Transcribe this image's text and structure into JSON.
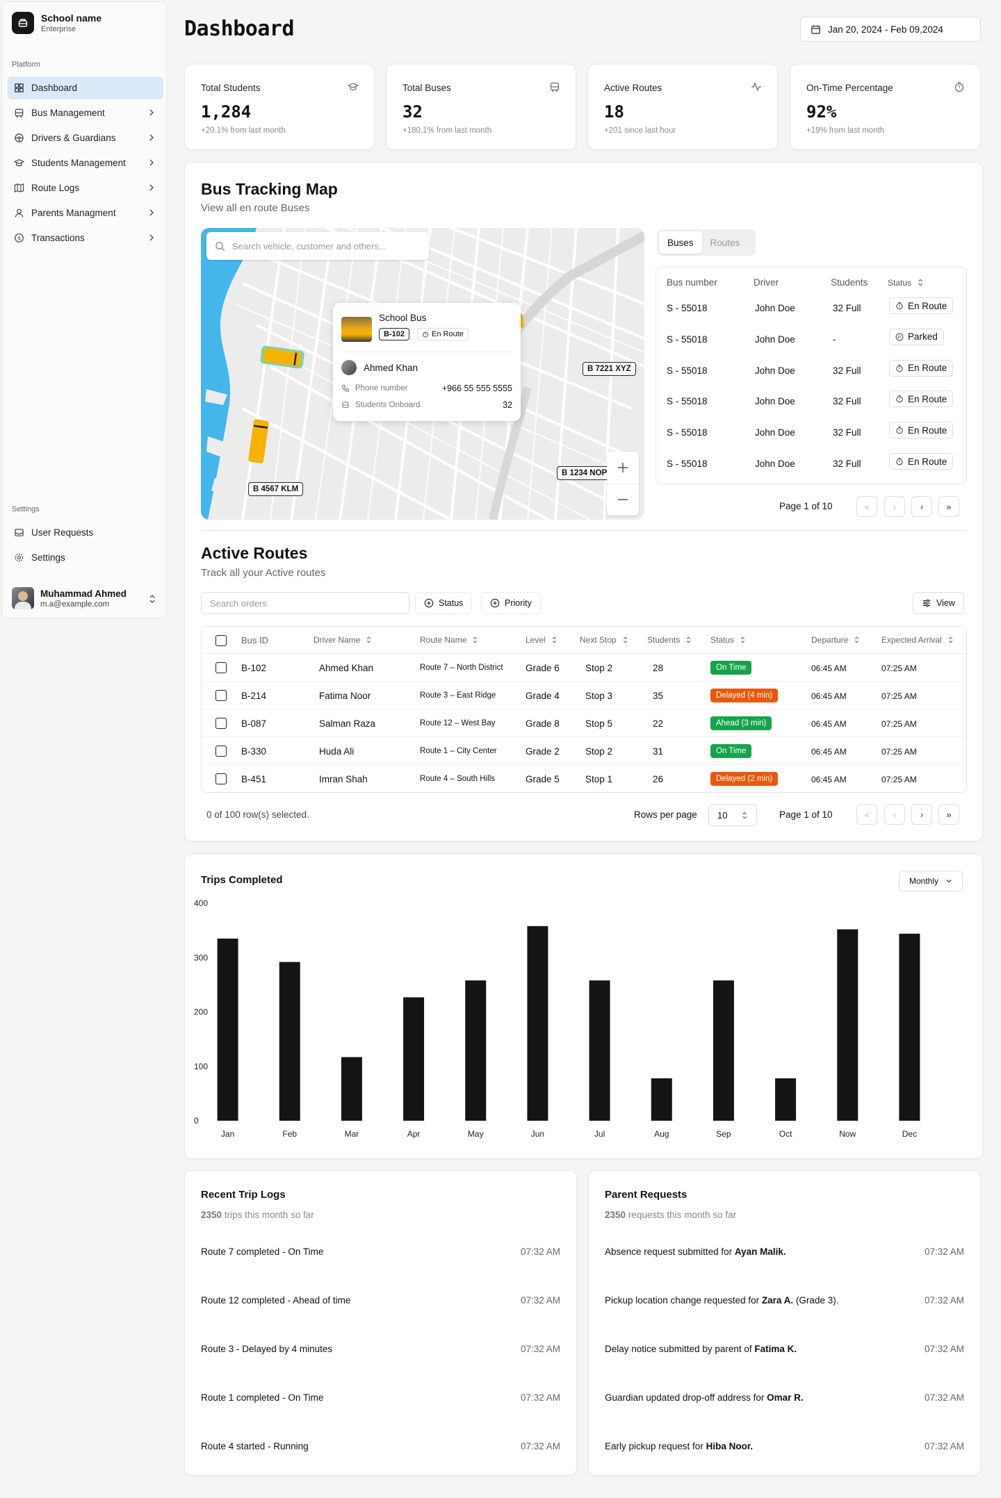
{
  "sidebar": {
    "brand": {
      "name": "School name",
      "plan": "Enterprise"
    },
    "platform_label": "Platform",
    "items": [
      {
        "label": "Dashboard"
      },
      {
        "label": "Bus Management"
      },
      {
        "label": "Drivers & Guardians"
      },
      {
        "label": "Students Management"
      },
      {
        "label": "Route Logs"
      },
      {
        "label": "Parents Managment"
      },
      {
        "label": "Transactions"
      }
    ],
    "settings_label": "Settings",
    "settings_items": [
      {
        "label": "User Requests"
      },
      {
        "label": "Settings"
      }
    ],
    "user": {
      "name": "Muhammad Ahmed",
      "email": "m.a@example.com"
    }
  },
  "header": {
    "title": "Dashboard",
    "date_range": "Jan 20, 2024 - Feb 09,2024"
  },
  "stats": [
    {
      "title": "Total Students",
      "value": "1,284",
      "sub": "+20.1% from last month"
    },
    {
      "title": "Total Buses",
      "value": "32",
      "sub": "+180.1% from last month"
    },
    {
      "title": "Active Routes",
      "value": "18",
      "sub": "+201 since last hour"
    },
    {
      "title": "On-Time Percentage",
      "value": "92%",
      "sub": "+19% from last month"
    }
  ],
  "tracking": {
    "title": "Bus Tracking Map",
    "subtitle": "View all en route Buses",
    "search_placeholder": "Search vehicle, customer and others...",
    "popup": {
      "type": "School Bus",
      "bus_id": "B-102",
      "status": "En Route",
      "driver": "Ahmed Khan",
      "phone_label": "Phone number",
      "phone": "+966 55 555 5555",
      "students_label": "Students Onboard",
      "students": "32"
    },
    "bus_labels": [
      "B 7221 XYZ",
      "B 1234 NOP",
      "B 4567 KLM"
    ],
    "tabs": [
      "Buses",
      "Routes"
    ],
    "columns": [
      "Bus number",
      "Driver",
      "Students",
      "Status"
    ],
    "rows": [
      {
        "bus": "S - 55018",
        "driver": "John Doe",
        "students": "32 Full",
        "status": "En Route"
      },
      {
        "bus": "S - 55018",
        "driver": "John Doe",
        "students": "-",
        "status": "Parked"
      },
      {
        "bus": "S - 55018",
        "driver": "John Doe",
        "students": "32 Full",
        "status": "En Route"
      },
      {
        "bus": "S - 55018",
        "driver": "John Doe",
        "students": "32 Full",
        "status": "En Route"
      },
      {
        "bus": "S - 55018",
        "driver": "John Doe",
        "students": "32 Full",
        "status": "En Route"
      },
      {
        "bus": "S - 55018",
        "driver": "John Doe",
        "students": "32 Full",
        "status": "En Route"
      }
    ],
    "page": "Page 1 of 10"
  },
  "routes": {
    "title": "Active Routes",
    "subtitle": "Track all your Active routes",
    "search_placeholder": "Search orders",
    "filters": [
      "Status",
      "Priority"
    ],
    "view_label": "View",
    "columns": [
      "Bus ID",
      "Driver Name",
      "Route Name",
      "Level",
      "Next Stop",
      "Students",
      "Status",
      "Departure",
      "Expected Arrival"
    ],
    "rows": [
      {
        "id": "B-102",
        "driver": "Ahmed Khan",
        "route": "Route 7 – North District",
        "level": "Grade 6",
        "stop": "Stop 2",
        "students": "28",
        "status": "On Time",
        "status_color": "#16a34a",
        "departure": "06:45 AM",
        "arrival": "07:25 AM"
      },
      {
        "id": "B-214",
        "driver": "Fatima Noor",
        "route": "Route 3 – East Ridge",
        "level": "Grade 4",
        "stop": "Stop 3",
        "students": "35",
        "status": "Delayed (4 min)",
        "status_color": "#ea580c",
        "departure": "06:45 AM",
        "arrival": "07:25 AM"
      },
      {
        "id": "B-087",
        "driver": "Salman Raza",
        "route": "Route 12 – West Bay",
        "level": "Grade 8",
        "stop": "Stop 5",
        "students": "22",
        "status": "Ahead (3 min)",
        "status_color": "#16a34a",
        "departure": "06:45 AM",
        "arrival": "07:25 AM"
      },
      {
        "id": "B-330",
        "driver": "Huda Ali",
        "route": "Route 1 – City Center",
        "level": "Grade 2",
        "stop": "Stop 2",
        "students": "31",
        "status": "On Time",
        "status_color": "#16a34a",
        "departure": "06:45 AM",
        "arrival": "07:25 AM"
      },
      {
        "id": "B-451",
        "driver": "Imran Shah",
        "route": "Route 4 – South Hills",
        "level": "Grade 5",
        "stop": "Stop 1",
        "students": "26",
        "status": "Delayed (2 min)",
        "status_color": "#ea580c",
        "departure": "06:45 AM",
        "arrival": "07:25 AM"
      }
    ],
    "selected": "0 of 100 row(s) selected.",
    "rows_per_page_label": "Rows per page",
    "rows_per_page": "10",
    "page": "Page 1 of 10"
  },
  "chart_data": {
    "type": "bar",
    "title": "Trips Completed",
    "period": "Monthly",
    "categories": [
      "Jan",
      "Feb",
      "Mar",
      "Apr",
      "May",
      "Jun",
      "Jul",
      "Aug",
      "Sep",
      "Oct",
      "Now",
      "Dec"
    ],
    "values": [
      335,
      292,
      117,
      227,
      258,
      358,
      258,
      78,
      258,
      78,
      352,
      344
    ],
    "yticks": [
      0,
      100,
      200,
      300,
      400
    ],
    "ylim": [
      0,
      400
    ],
    "bar_color": "#141414"
  },
  "trip_logs": {
    "title": "Recent Trip Logs",
    "count": "2350",
    "count_suffix": "trips this month so far",
    "items": [
      {
        "text": "Route 7 completed - On Time",
        "time": "07:32 AM"
      },
      {
        "text": "Route 12 completed - Ahead of time",
        "time": "07:32 AM"
      },
      {
        "text": "Route 3 - Delayed by 4 minutes",
        "time": "07:32 AM"
      },
      {
        "text": "Route 1 completed - On Time",
        "time": "07:32 AM"
      },
      {
        "text": "Route 4 started - Running",
        "time": "07:32 AM"
      }
    ]
  },
  "parent_requests": {
    "title": "Parent Requests",
    "count": "2350",
    "count_suffix": "requests this month so far",
    "items": [
      {
        "prefix": "Absence request submitted for ",
        "name": "Ayan Malik.",
        "suffix": "",
        "time": "07:32 AM"
      },
      {
        "prefix": "Pickup location change requested for ",
        "name": "Zara A.",
        "suffix": " (Grade 3).",
        "time": "07:32 AM"
      },
      {
        "prefix": "Delay notice submitted by parent of ",
        "name": "Fatima K.",
        "suffix": "",
        "time": "07:32 AM"
      },
      {
        "prefix": "Guardian updated drop-off address for ",
        "name": "Omar R.",
        "suffix": "",
        "time": "07:32 AM"
      },
      {
        "prefix": "Early pickup request for ",
        "name": "Hiba Noor.",
        "suffix": "",
        "time": "07:32 AM"
      }
    ]
  }
}
